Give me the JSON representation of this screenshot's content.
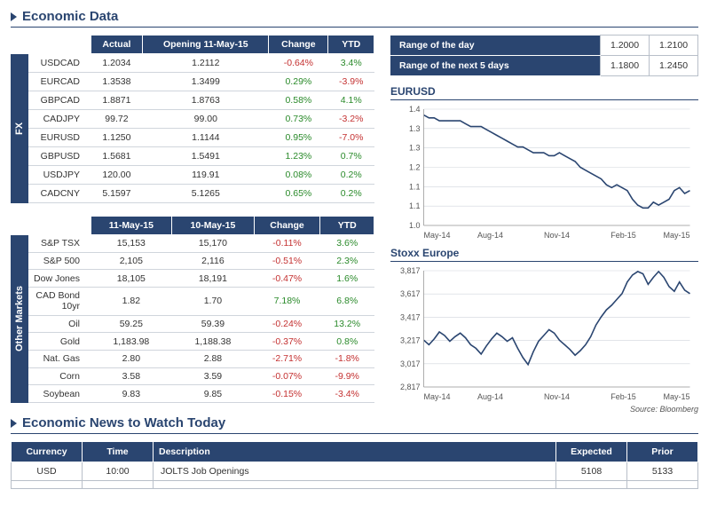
{
  "titles": {
    "economic_data": "Economic Data",
    "economic_news": "Economic News to Watch Today",
    "source": "Source: Bloomberg"
  },
  "fx": {
    "side_label": "FX",
    "headers": [
      "Actual",
      "Opening 11-May-15",
      "Change",
      "YTD"
    ],
    "rows": [
      {
        "label": "USDCAD",
        "cells": [
          "1.2034",
          "1.2112",
          "-0.64%",
          "3.4%"
        ],
        "signs": [
          0,
          0,
          -1,
          1
        ]
      },
      {
        "label": "EURCAD",
        "cells": [
          "1.3538",
          "1.3499",
          "0.29%",
          "-3.9%"
        ],
        "signs": [
          0,
          0,
          1,
          -1
        ]
      },
      {
        "label": "GBPCAD",
        "cells": [
          "1.8871",
          "1.8763",
          "0.58%",
          "4.1%"
        ],
        "signs": [
          0,
          0,
          1,
          1
        ]
      },
      {
        "label": "CADJPY",
        "cells": [
          "99.72",
          "99.00",
          "0.73%",
          "-3.2%"
        ],
        "signs": [
          0,
          0,
          1,
          -1
        ]
      },
      {
        "label": "EURUSD",
        "cells": [
          "1.1250",
          "1.1144",
          "0.95%",
          "-7.0%"
        ],
        "signs": [
          0,
          0,
          1,
          -1
        ]
      },
      {
        "label": "GBPUSD",
        "cells": [
          "1.5681",
          "1.5491",
          "1.23%",
          "0.7%"
        ],
        "signs": [
          0,
          0,
          1,
          1
        ]
      },
      {
        "label": "USDJPY",
        "cells": [
          "120.00",
          "119.91",
          "0.08%",
          "0.2%"
        ],
        "signs": [
          0,
          0,
          1,
          1
        ]
      },
      {
        "label": "CADCNY",
        "cells": [
          "5.1597",
          "5.1265",
          "0.65%",
          "0.2%"
        ],
        "signs": [
          0,
          0,
          1,
          1
        ]
      }
    ]
  },
  "other": {
    "side_label": "Other Markets",
    "headers": [
      "11-May-15",
      "10-May-15",
      "Change",
      "YTD"
    ],
    "rows": [
      {
        "label": "S&P TSX",
        "cells": [
          "15,153",
          "15,170",
          "-0.11%",
          "3.6%"
        ],
        "signs": [
          0,
          0,
          -1,
          1
        ]
      },
      {
        "label": "S&P 500",
        "cells": [
          "2,105",
          "2,116",
          "-0.51%",
          "2.3%"
        ],
        "signs": [
          0,
          0,
          -1,
          1
        ]
      },
      {
        "label": "Dow Jones",
        "cells": [
          "18,105",
          "18,191",
          "-0.47%",
          "1.6%"
        ],
        "signs": [
          0,
          0,
          -1,
          1
        ]
      },
      {
        "label": "CAD Bond 10yr",
        "cells": [
          "1.82",
          "1.70",
          "7.18%",
          "6.8%"
        ],
        "signs": [
          0,
          0,
          1,
          1
        ]
      },
      {
        "label": "Oil",
        "cells": [
          "59.25",
          "59.39",
          "-0.24%",
          "13.2%"
        ],
        "signs": [
          0,
          0,
          -1,
          1
        ]
      },
      {
        "label": "Gold",
        "cells": [
          "1,183.98",
          "1,188.38",
          "-0.37%",
          "0.8%"
        ],
        "signs": [
          0,
          0,
          -1,
          1
        ]
      },
      {
        "label": "Nat. Gas",
        "cells": [
          "2.80",
          "2.88",
          "-2.71%",
          "-1.8%"
        ],
        "signs": [
          0,
          0,
          -1,
          -1
        ]
      },
      {
        "label": "Corn",
        "cells": [
          "3.58",
          "3.59",
          "-0.07%",
          "-9.9%"
        ],
        "signs": [
          0,
          0,
          -1,
          -1
        ]
      },
      {
        "label": "Soybean",
        "cells": [
          "9.83",
          "9.85",
          "-0.15%",
          "-3.4%"
        ],
        "signs": [
          0,
          0,
          -1,
          -1
        ]
      }
    ]
  },
  "ranges": {
    "rows": [
      {
        "label": "Range of the day",
        "low": "1.2000",
        "high": "1.2100"
      },
      {
        "label": "Range of the next 5 days",
        "low": "1.1800",
        "high": "1.2450"
      }
    ]
  },
  "chart1": {
    "title": "EURUSD",
    "x_labels": [
      "May-14",
      "Aug-14",
      "Nov-14",
      "Feb-15",
      "May-15"
    ],
    "y_labels": [
      "1.0",
      "1.1",
      "1.1",
      "1.2",
      "1.3",
      "1.3",
      "1.4"
    ],
    "y_min": 1.0,
    "y_max": 1.4,
    "line_color": "#2a4570",
    "points": [
      1.38,
      1.37,
      1.37,
      1.36,
      1.36,
      1.36,
      1.36,
      1.36,
      1.35,
      1.34,
      1.34,
      1.34,
      1.33,
      1.32,
      1.31,
      1.3,
      1.29,
      1.28,
      1.27,
      1.27,
      1.26,
      1.25,
      1.25,
      1.25,
      1.24,
      1.24,
      1.25,
      1.24,
      1.23,
      1.22,
      1.2,
      1.19,
      1.18,
      1.17,
      1.16,
      1.14,
      1.13,
      1.14,
      1.13,
      1.12,
      1.09,
      1.07,
      1.06,
      1.06,
      1.08,
      1.07,
      1.08,
      1.09,
      1.12,
      1.13,
      1.11,
      1.12
    ]
  },
  "chart2": {
    "title": "Stoxx Europe",
    "x_labels": [
      "May-14",
      "Aug-14",
      "Nov-14",
      "Feb-15",
      "May-15"
    ],
    "y_labels": [
      "2,817",
      "3,017",
      "3,217",
      "3,417",
      "3,617",
      "3,817"
    ],
    "y_min": 2817,
    "y_max": 3817,
    "line_color": "#2a4570",
    "points": [
      3220,
      3180,
      3230,
      3290,
      3260,
      3210,
      3250,
      3280,
      3240,
      3180,
      3150,
      3100,
      3170,
      3230,
      3280,
      3250,
      3210,
      3240,
      3150,
      3070,
      3010,
      3120,
      3210,
      3260,
      3310,
      3280,
      3220,
      3180,
      3140,
      3090,
      3130,
      3180,
      3250,
      3350,
      3420,
      3480,
      3520,
      3570,
      3620,
      3720,
      3780,
      3810,
      3790,
      3700,
      3760,
      3810,
      3760,
      3680,
      3640,
      3720,
      3650,
      3620
    ]
  },
  "news": {
    "headers": [
      "Currency",
      "Time",
      "Description",
      "Expected",
      "Prior"
    ],
    "rows": [
      {
        "currency": "USD",
        "time": "10:00",
        "desc": "JOLTS Job Openings",
        "expected": "5108",
        "prior": "5133"
      }
    ]
  },
  "colors": {
    "brand": "#2a4570",
    "pos": "#2a8a2a",
    "neg": "#c43131",
    "grid": "#d0d5dc"
  }
}
